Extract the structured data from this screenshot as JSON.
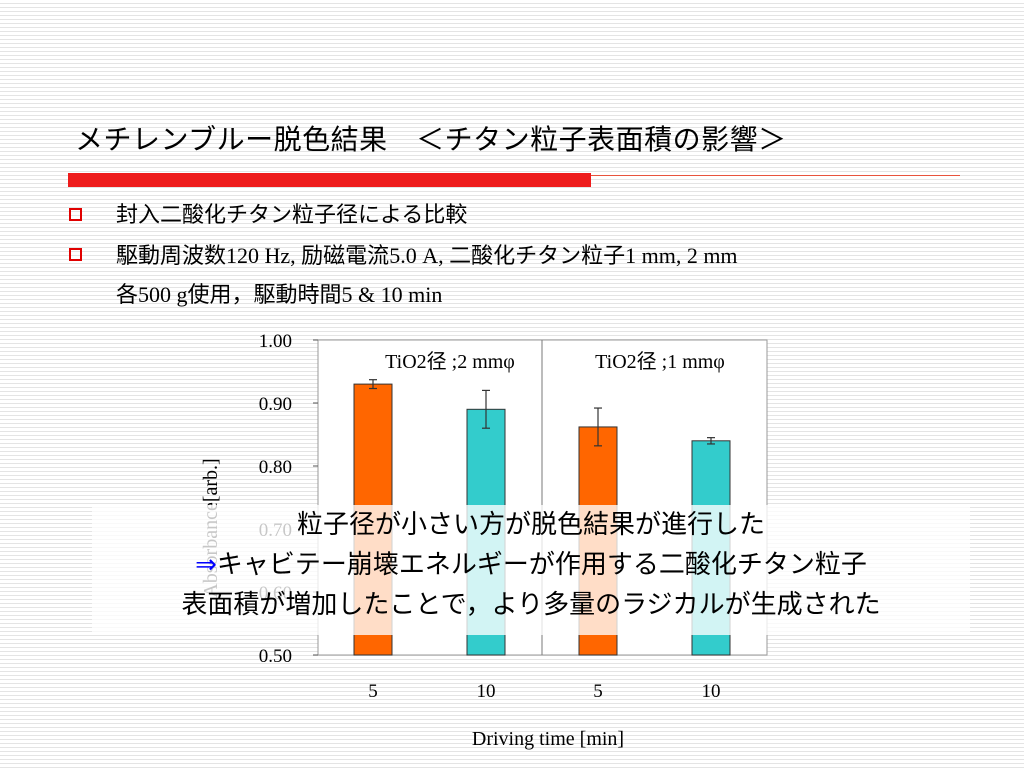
{
  "slide": {
    "title": "メチレンブルー脱色結果　＜チタン粒子表面積の影響＞",
    "bullets": {
      "b1": "封入二酸化チタン粒子径による比較",
      "b2_parts": [
        "駆動周波数",
        "120 Hz, ",
        "励磁電流",
        "5.0 A, ",
        "二酸化チタン粒子",
        "1 mm, 2 mm"
      ],
      "b2_line2_parts": [
        "各",
        "500 g",
        "使用，駆動時間",
        "5 & 10 min"
      ]
    },
    "callout": {
      "line1": "粒子径が小さい方が脱色結果が進行した",
      "arrow": "⇒",
      "line2": "キャビテー崩壊エネルギーが作用する二酸化チタン粒子",
      "line3": "表面積が増加したことで，より多量のラジカルが生成された"
    },
    "colors": {
      "orange_bar": "#ff6600",
      "teal_bar": "#33cccc",
      "bullet_box": "#e00000",
      "title_rule": "#ee1c1c",
      "group1_label": "#993366",
      "group2_label": "#000080"
    }
  },
  "chart_data": {
    "type": "bar",
    "xlabel": "Driving time [min]",
    "ylabel": "Absorbance[arb.]",
    "ylim": [
      0.5,
      1.0
    ],
    "yticks": [
      "0.50",
      "0.60",
      "0.70",
      "0.80",
      "0.90",
      "1.00"
    ],
    "categories": [
      "5",
      "10",
      "5",
      "10"
    ],
    "values": [
      0.93,
      0.89,
      0.862,
      0.84
    ],
    "errors": [
      0.007,
      0.03,
      0.03,
      0.005
    ],
    "bar_colors": [
      "#ff6600",
      "#33cccc",
      "#ff6600",
      "#33cccc"
    ],
    "groups": [
      {
        "label": "TiO2径 ;2 mmφ",
        "bars": [
          0,
          1
        ]
      },
      {
        "label": "TiO2径 ;1 mmφ",
        "bars": [
          2,
          3
        ]
      }
    ],
    "grid": false
  }
}
